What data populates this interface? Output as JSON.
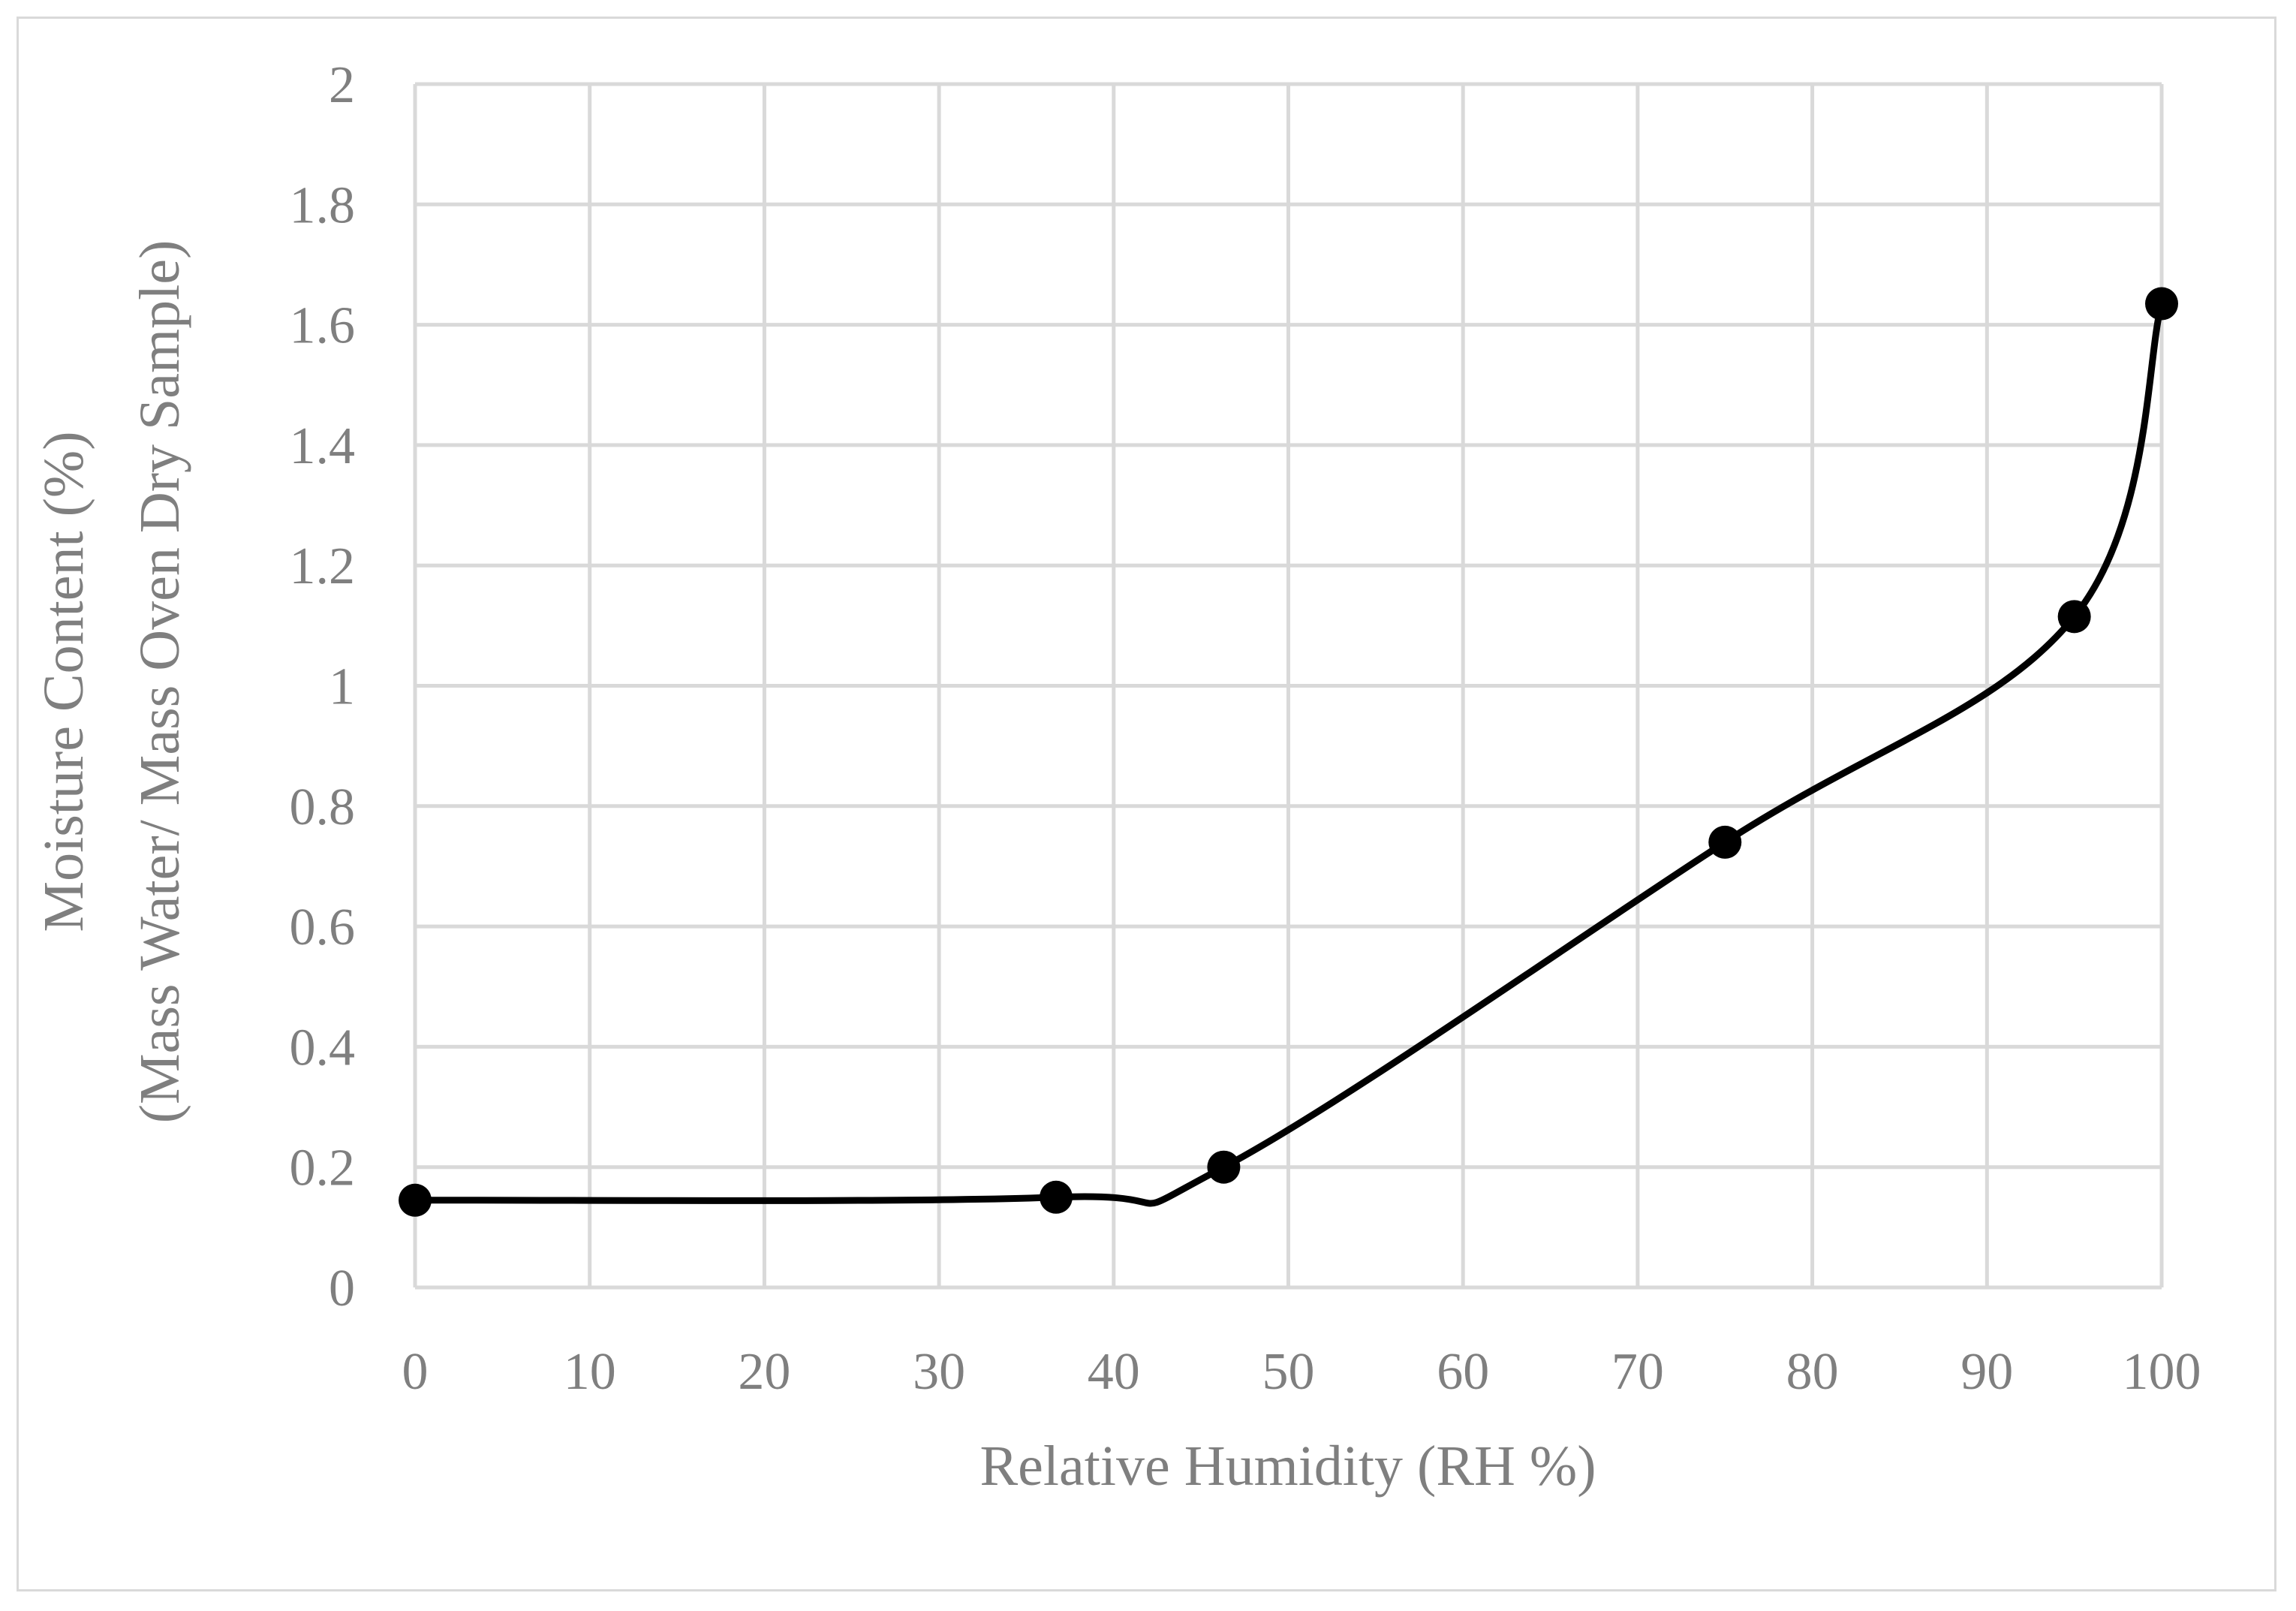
{
  "chart_data": {
    "type": "line",
    "title": "",
    "xlabel": "Relative Humidity (RH %)",
    "ylabel_line1": "Moisture Content (%)",
    "ylabel_line2": "(Mass Water/ Mass Oven Dry Sample)",
    "xlim": [
      0,
      100
    ],
    "ylim": [
      0,
      2
    ],
    "x_ticks": [
      0,
      10,
      20,
      30,
      40,
      50,
      60,
      70,
      80,
      90,
      100
    ],
    "y_ticks": [
      0,
      0.2,
      0.4,
      0.6,
      0.8,
      1,
      1.2,
      1.4,
      1.6,
      1.8,
      2
    ],
    "y_tick_labels": [
      "0",
      "0.2",
      "0.4",
      "0.6",
      "0.8",
      "1",
      "1.2",
      "1.4",
      "1.6",
      "1.8",
      "2"
    ],
    "grid": true,
    "legend": "none",
    "line_style": "smoothed",
    "series": [
      {
        "x": [
          0,
          36.7,
          46.3,
          75.0,
          95.0,
          100
        ],
        "y": [
          0.145,
          0.15,
          0.2,
          0.74,
          1.115,
          1.635
        ]
      }
    ],
    "colors": {
      "line": "#000000",
      "marker": "#000000",
      "grid": "#d9d9d9",
      "text": "#7f7f7f",
      "frame": "#d9d9d9"
    }
  }
}
